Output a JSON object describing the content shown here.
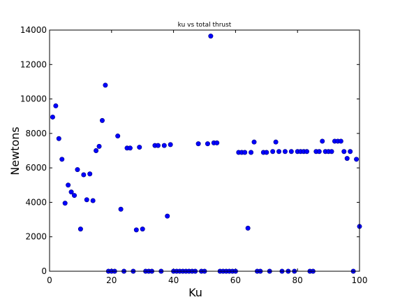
{
  "chart_data": {
    "type": "scatter",
    "title": "ku vs total thrust",
    "xlabel": "Ku",
    "ylabel": "Newtons",
    "xlim": [
      0,
      100
    ],
    "ylim": [
      0,
      14000
    ],
    "xticks": [
      "0",
      "20",
      "40",
      "60",
      "80",
      "100"
    ],
    "yticks": [
      "0",
      "2000",
      "4000",
      "6000",
      "8000",
      "10000",
      "12000",
      "14000"
    ],
    "grid": false,
    "marker_color": "#0000ff",
    "marker_edge_color": "#000080",
    "points": [
      [
        1,
        8950
      ],
      [
        2,
        9600
      ],
      [
        3,
        7700
      ],
      [
        4,
        6500
      ],
      [
        5,
        3950
      ],
      [
        6,
        5000
      ],
      [
        7,
        4600
      ],
      [
        8,
        4400
      ],
      [
        9,
        5900
      ],
      [
        10,
        2450
      ],
      [
        11,
        5600
      ],
      [
        12,
        4150
      ],
      [
        13,
        5650
      ],
      [
        14,
        4100
      ],
      [
        15,
        7000
      ],
      [
        16,
        7250
      ],
      [
        17,
        8750
      ],
      [
        18,
        10800
      ],
      [
        19,
        0
      ],
      [
        20,
        0
      ],
      [
        21,
        0
      ],
      [
        22,
        7850
      ],
      [
        23,
        3600
      ],
      [
        24,
        0
      ],
      [
        25,
        7150
      ],
      [
        26,
        7150
      ],
      [
        27,
        0
      ],
      [
        28,
        2400
      ],
      [
        29,
        7200
      ],
      [
        30,
        2450
      ],
      [
        31,
        0
      ],
      [
        32,
        0
      ],
      [
        33,
        0
      ],
      [
        34,
        7300
      ],
      [
        35,
        7300
      ],
      [
        36,
        0
      ],
      [
        37,
        7300
      ],
      [
        38,
        3200
      ],
      [
        39,
        7350
      ],
      [
        40,
        0
      ],
      [
        41,
        0
      ],
      [
        42,
        0
      ],
      [
        43,
        0
      ],
      [
        44,
        0
      ],
      [
        45,
        0
      ],
      [
        46,
        0
      ],
      [
        47,
        0
      ],
      [
        48,
        7400
      ],
      [
        49,
        0
      ],
      [
        50,
        0
      ],
      [
        51,
        7400
      ],
      [
        52,
        13650
      ],
      [
        53,
        7450
      ],
      [
        54,
        7450
      ],
      [
        55,
        0
      ],
      [
        56,
        0
      ],
      [
        57,
        0
      ],
      [
        58,
        0
      ],
      [
        59,
        0
      ],
      [
        60,
        0
      ],
      [
        61,
        6900
      ],
      [
        62,
        6900
      ],
      [
        63,
        6900
      ],
      [
        64,
        2500
      ],
      [
        65,
        6900
      ],
      [
        66,
        7500
      ],
      [
        67,
        0
      ],
      [
        68,
        0
      ],
      [
        69,
        6900
      ],
      [
        70,
        6900
      ],
      [
        71,
        0
      ],
      [
        72,
        6950
      ],
      [
        73,
        7500
      ],
      [
        74,
        6950
      ],
      [
        75,
        0
      ],
      [
        76,
        6950
      ],
      [
        77,
        0
      ],
      [
        78,
        6950
      ],
      [
        79,
        0
      ],
      [
        80,
        6950
      ],
      [
        81,
        6950
      ],
      [
        82,
        6950
      ],
      [
        83,
        6950
      ],
      [
        84,
        0
      ],
      [
        85,
        0
      ],
      [
        86,
        6950
      ],
      [
        87,
        6950
      ],
      [
        88,
        7550
      ],
      [
        89,
        6950
      ],
      [
        90,
        6950
      ],
      [
        91,
        6950
      ],
      [
        92,
        7550
      ],
      [
        93,
        7550
      ],
      [
        94,
        7550
      ],
      [
        95,
        6950
      ],
      [
        96,
        6550
      ],
      [
        97,
        6950
      ],
      [
        98,
        0
      ],
      [
        99,
        6500
      ],
      [
        100,
        2600
      ]
    ]
  }
}
